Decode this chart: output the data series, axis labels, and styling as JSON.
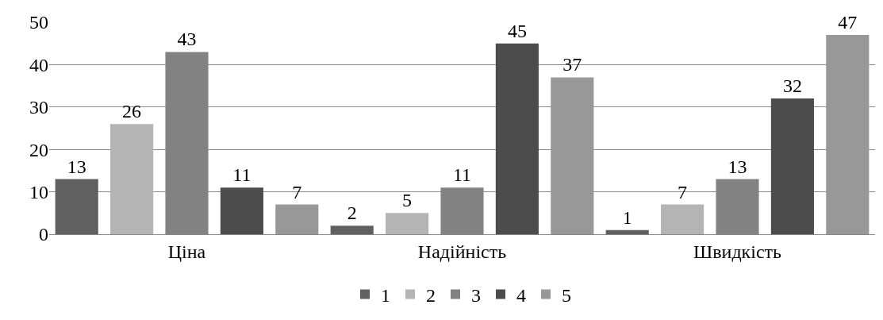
{
  "chart_data": {
    "type": "bar",
    "categories": [
      "Ціна",
      "Надійність",
      "Швидкість"
    ],
    "series": [
      {
        "name": "1",
        "color": "#606060",
        "values": [
          13,
          2,
          1
        ]
      },
      {
        "name": "2",
        "color": "#b4b4b4",
        "values": [
          26,
          5,
          7
        ]
      },
      {
        "name": "3",
        "color": "#828282",
        "values": [
          43,
          11,
          13
        ]
      },
      {
        "name": "4",
        "color": "#4c4c4c",
        "values": [
          11,
          45,
          32
        ]
      },
      {
        "name": "5",
        "color": "#989898",
        "values": [
          7,
          37,
          47
        ]
      }
    ],
    "ylim": [
      0,
      50
    ],
    "yticks": [
      0,
      10,
      20,
      30,
      40,
      50
    ],
    "grid": "y",
    "legend": "bottom",
    "data_labels": true
  }
}
